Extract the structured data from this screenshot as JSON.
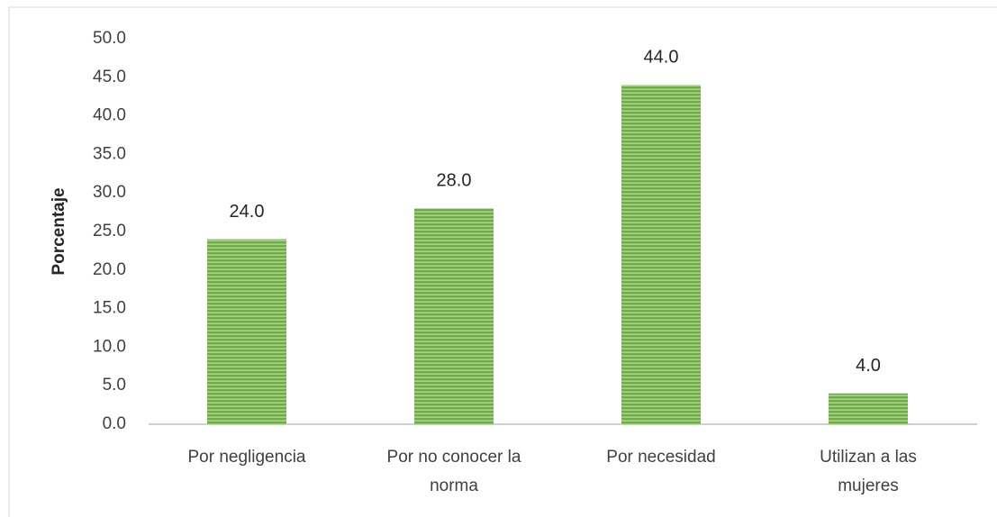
{
  "chart_data": {
    "type": "bar",
    "y_label": "Porcentaje",
    "categories": [
      "Por negligencia",
      "Por no conocer la norma",
      "Por necesidad",
      "Utilizan a las mujeres"
    ],
    "values": [
      24,
      28,
      44,
      4
    ],
    "value_labels": [
      "24.0",
      "28.0",
      "44.0",
      "4.0"
    ],
    "color": "#70ad47",
    "ylim": [
      0,
      50
    ],
    "yticks": [
      {
        "value": 0,
        "label": "0.0"
      },
      {
        "value": 5,
        "label": "5.0"
      },
      {
        "value": 10,
        "label": "10.0"
      },
      {
        "value": 15,
        "label": "15.0"
      },
      {
        "value": 20,
        "label": "20.0"
      },
      {
        "value": 25,
        "label": "25.0"
      },
      {
        "value": 30,
        "label": "30.0"
      },
      {
        "value": 35,
        "label": "35.0"
      },
      {
        "value": 40,
        "label": "40.0"
      },
      {
        "value": 45,
        "label": "45.0"
      },
      {
        "value": 50,
        "label": "50.0"
      }
    ],
    "grid": false
  }
}
